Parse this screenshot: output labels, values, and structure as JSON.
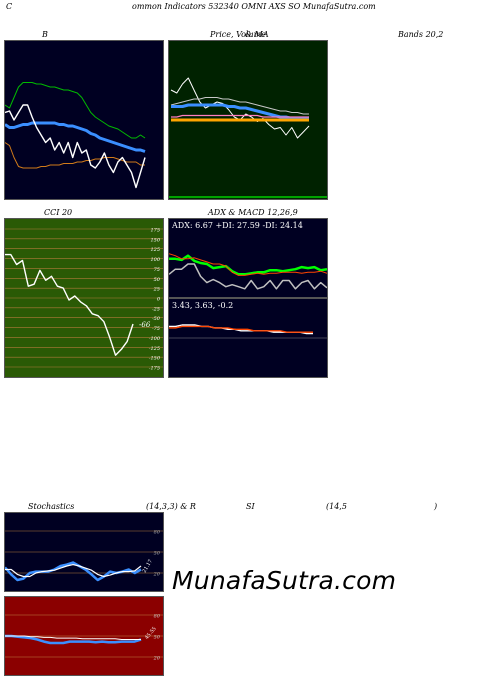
{
  "header": {
    "title": "ommon  Indicators 532340  OMNI AXS SO MunafaSutra.com",
    "letter": "C"
  },
  "labels": {
    "b": "B",
    "price": "Price,  Volume",
    "ma": "  & MA",
    "bands": "Bands 20,2",
    "cci": "CCI 20",
    "adx": "ADX  & MACD 12,26,9",
    "stoch_left": "Stochastics",
    "stoch_mid": "(14,3,3) & R",
    "rsi": "SI",
    "rsi_param": "(14,5",
    "rsi_close": ")"
  },
  "adx_text": "ADX: 6.67  +DI: 27.59 -DI: 24.14",
  "macd_text": "3.43,  3.63,  -0.2",
  "cci_value": "-66",
  "watermark": "MunafaSutra.com",
  "colors": {
    "panel_bg": "#000022",
    "price_bg": "#002200",
    "cci_bg": "#2a5a05",
    "rsi_bg": "#8b0000",
    "grid": "#b07a3a"
  },
  "chart_data": [
    {
      "type": "line",
      "name": "bollinger",
      "series": [
        {
          "name": "upper",
          "color": "#00bb00",
          "values": [
            60,
            58,
            65,
            72,
            75,
            75,
            75,
            74,
            74,
            73,
            72,
            72,
            71,
            70,
            70,
            69,
            68,
            65,
            60,
            55,
            52,
            50,
            48,
            46,
            45,
            44,
            42,
            40,
            38,
            38,
            40,
            38
          ]
        },
        {
          "name": "middle",
          "color": "#3b8fff",
          "values": [
            47,
            45,
            45,
            46,
            47,
            47,
            48,
            48,
            48,
            48,
            48,
            48,
            47,
            47,
            46,
            46,
            45,
            44,
            43,
            41,
            40,
            38,
            37,
            36,
            35,
            34,
            33,
            32,
            31,
            30,
            30,
            29
          ]
        },
        {
          "name": "lower",
          "color": "#d07a1a",
          "values": [
            35,
            33,
            25,
            19,
            18,
            18,
            18,
            18,
            19,
            19,
            20,
            20,
            20,
            21,
            21,
            21,
            22,
            22,
            23,
            23,
            24,
            24,
            25,
            25,
            25,
            24,
            23,
            22,
            22,
            22,
            20,
            20
          ]
        },
        {
          "name": "close",
          "color": "#ffffff",
          "values": [
            55,
            56,
            50,
            55,
            60,
            60,
            52,
            45,
            40,
            35,
            38,
            30,
            35,
            28,
            35,
            25,
            35,
            28,
            30,
            20,
            18,
            22,
            28,
            20,
            15,
            22,
            25,
            20,
            15,
            5,
            15,
            25
          ]
        }
      ],
      "ylim": [
        0,
        100
      ]
    },
    {
      "type": "line",
      "name": "price_ma",
      "series": [
        {
          "name": "price",
          "color": "#ffffff",
          "values": [
            70,
            68,
            74,
            78,
            70,
            62,
            58,
            60,
            62,
            61,
            57,
            52,
            50,
            54,
            52,
            49,
            51,
            47,
            44,
            45,
            40,
            45,
            38,
            42,
            46
          ]
        },
        {
          "name": "ma_1",
          "color": "#c8c8c8",
          "values": [
            60,
            61,
            62,
            63,
            64,
            64,
            65,
            65,
            65,
            64,
            64,
            63,
            62,
            62,
            61,
            60,
            59,
            58,
            57,
            56,
            56,
            55,
            55,
            54,
            54
          ]
        },
        {
          "name": "ma_2",
          "color": "#3b8fff",
          "values": [
            59,
            59,
            59,
            60,
            60,
            60,
            60,
            60,
            60,
            60,
            59,
            59,
            58,
            58,
            57,
            56,
            55,
            54,
            53,
            52,
            52,
            51,
            51,
            51,
            51
          ]
        },
        {
          "name": "ma_3",
          "color": "#ff7fbf",
          "values": [
            52,
            52,
            53,
            53,
            53,
            53,
            53,
            53,
            53,
            53,
            53,
            53,
            53,
            53,
            53,
            53,
            52,
            52,
            52,
            52,
            52,
            52,
            52,
            52,
            52
          ]
        },
        {
          "name": "ma_4",
          "color": "#ffa500",
          "values": [
            50,
            50,
            50,
            50,
            50,
            50,
            50,
            50,
            50,
            50,
            50,
            50,
            50,
            50,
            50,
            50,
            50,
            50,
            50,
            50,
            50,
            50,
            50,
            50,
            50
          ]
        }
      ],
      "ylim": [
        0,
        100
      ]
    },
    {
      "type": "line",
      "name": "cci",
      "series": [
        {
          "name": "cci",
          "color": "#ffffff",
          "values": [
            110,
            110,
            85,
            95,
            30,
            35,
            70,
            45,
            55,
            30,
            25,
            -5,
            5,
            -10,
            -20,
            -40,
            -45,
            -60,
            -100,
            -145,
            -130,
            -110,
            -66
          ]
        }
      ],
      "ylim": [
        -175,
        175
      ],
      "ticks": [
        175,
        150,
        125,
        100,
        75,
        50,
        25,
        0,
        -25,
        -50,
        -75,
        -100,
        -125,
        -150,
        -175
      ]
    },
    {
      "type": "line",
      "name": "adx",
      "series": [
        {
          "name": "+DI",
          "color": "#00ff00",
          "values": [
            35,
            35,
            34,
            38,
            33,
            31,
            30,
            26,
            27,
            28,
            23,
            20,
            20,
            21,
            22,
            22,
            24,
            24,
            23,
            24,
            25,
            27,
            26,
            27,
            24,
            25
          ]
        },
        {
          "name": "-DI",
          "color": "#ff4500",
          "values": [
            40,
            38,
            35,
            35,
            36,
            34,
            32,
            30,
            30,
            28,
            22,
            19,
            19,
            20,
            21,
            20,
            21,
            21,
            22,
            22,
            22,
            21,
            22,
            22,
            23,
            21
          ]
        },
        {
          "name": "ADX",
          "color": "#c0c0c0",
          "values": [
            20,
            25,
            25,
            30,
            30,
            18,
            12,
            15,
            12,
            8,
            10,
            8,
            6,
            14,
            6,
            8,
            14,
            6,
            14,
            14,
            6,
            12,
            14,
            6,
            12,
            7
          ]
        }
      ],
      "ylim": [
        0,
        60
      ]
    },
    {
      "type": "line",
      "name": "macd",
      "series": [
        {
          "name": "macd",
          "color": "#ffffff",
          "values": [
            8,
            8,
            9,
            9,
            9,
            8,
            8,
            7,
            7,
            6,
            6,
            5,
            5,
            5,
            5,
            5,
            4,
            4,
            4,
            4,
            4,
            3,
            3
          ]
        },
        {
          "name": "signal",
          "color": "#ff4500",
          "values": [
            7,
            7,
            8,
            8,
            8,
            8,
            8,
            7,
            7,
            7,
            6,
            6,
            6,
            5,
            5,
            5,
            5,
            5,
            4,
            4,
            4,
            4,
            4
          ]
        }
      ],
      "ylim": [
        -20,
        20
      ]
    },
    {
      "type": "line",
      "name": "stochastics",
      "series": [
        {
          "name": "k",
          "color": "#3b8fff",
          "values": [
            28,
            18,
            10,
            12,
            20,
            22,
            22,
            22,
            25,
            30,
            32,
            35,
            30,
            25,
            18,
            10,
            15,
            22,
            20,
            22,
            25,
            20,
            25
          ]
        },
        {
          "name": "d",
          "color": "#ffffff",
          "values": [
            25,
            25,
            18,
            15,
            15,
            20,
            22,
            23,
            24,
            27,
            30,
            32,
            30,
            27,
            24,
            18,
            15,
            17,
            20,
            22,
            22,
            23,
            30
          ]
        }
      ],
      "ylim": [
        0,
        100
      ],
      "ticks": [
        80,
        50,
        20
      ],
      "annotation": "21.17"
    },
    {
      "type": "line",
      "name": "rsi",
      "series": [
        {
          "name": "rsi",
          "color": "#3b8fff",
          "values": [
            50,
            50,
            49,
            48,
            47,
            45,
            42,
            40,
            40,
            40,
            42,
            42,
            42,
            42,
            41,
            42,
            41,
            41,
            42,
            42,
            42,
            45
          ]
        },
        {
          "name": "avg",
          "color": "#ffffff",
          "values": [
            50,
            50,
            50,
            50,
            49,
            49,
            48,
            48,
            47,
            47,
            47,
            47,
            46,
            46,
            46,
            46,
            46,
            46,
            45,
            45,
            45,
            45
          ]
        }
      ],
      "ylim": [
        0,
        100
      ],
      "ticks": [
        80,
        50,
        20
      ],
      "annotation": "45.55"
    }
  ]
}
